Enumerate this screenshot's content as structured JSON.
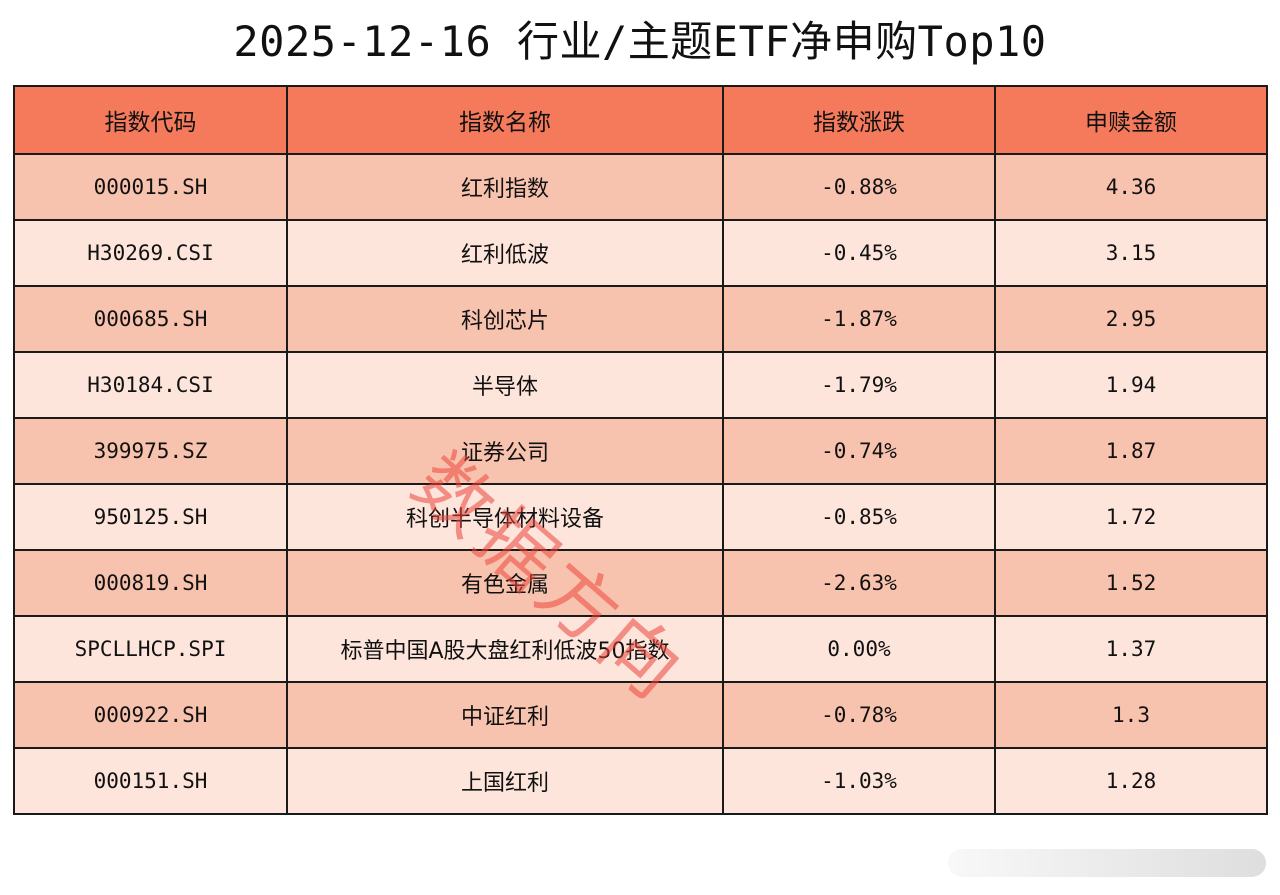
{
  "title": "2025-12-16 行业/主题ETF净申购Top10",
  "table": {
    "headers": [
      "指数代码",
      "指数名称",
      "指数涨跌",
      "申赎金额"
    ],
    "rows": [
      [
        "000015.SH",
        "红利指数",
        "-0.88%",
        "4.36"
      ],
      [
        "H30269.CSI",
        "红利低波",
        "-0.45%",
        "3.15"
      ],
      [
        "000685.SH",
        "科创芯片",
        "-1.87%",
        "2.95"
      ],
      [
        "H30184.CSI",
        "半导体",
        "-1.79%",
        "1.94"
      ],
      [
        "399975.SZ",
        "证券公司",
        "-0.74%",
        "1.87"
      ],
      [
        "950125.SH",
        "科创半导体材料设备",
        "-0.85%",
        "1.72"
      ],
      [
        "000819.SH",
        "有色金属",
        "-2.63%",
        "1.52"
      ],
      [
        "SPCLLHCP.SPI",
        "标普中国A股大盘红利低波50指数",
        "0.00%",
        "1.37"
      ],
      [
        "000922.SH",
        "中证红利",
        "-0.78%",
        "1.3"
      ],
      [
        "000151.SH",
        "上国红利",
        "-1.03%",
        "1.28"
      ]
    ]
  },
  "watermark": "数据方向",
  "colors": {
    "header": "#f57a5c",
    "row_odd": "#f8c3ae",
    "row_even": "#fde5dc",
    "watermark": "#eb463c"
  }
}
